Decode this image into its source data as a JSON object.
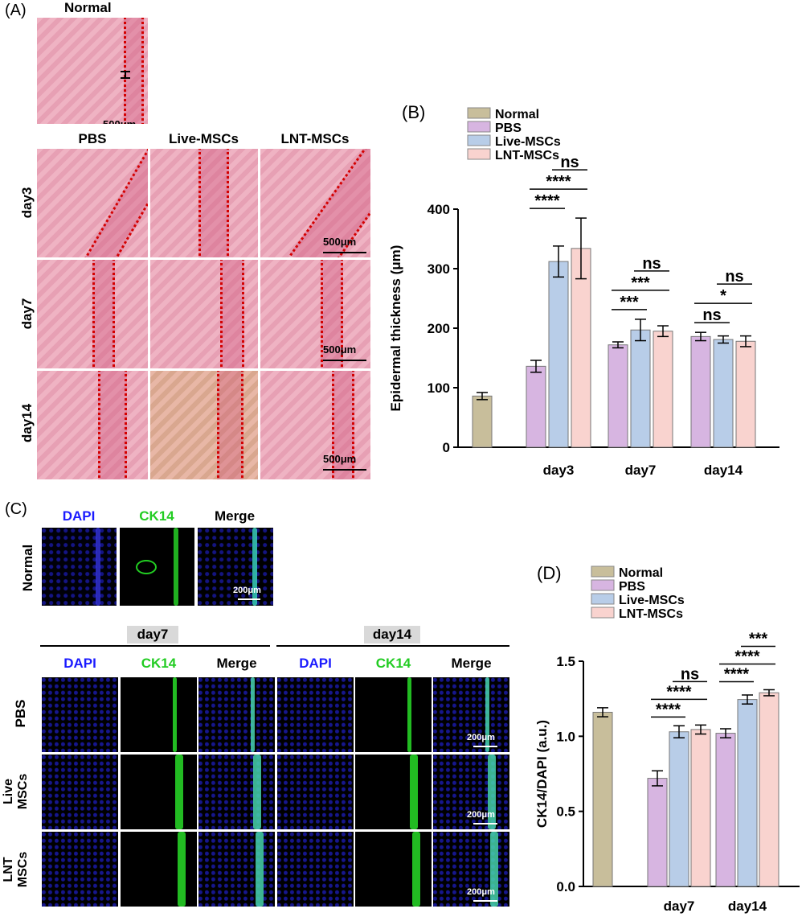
{
  "panels": {
    "A": "(A)",
    "B": "(B)",
    "C": "(C)",
    "D": "(D)"
  },
  "panelA": {
    "normal_title": "Normal",
    "scale": "500μm",
    "columns": [
      "PBS",
      "Live-MSCs",
      "LNT-MSCs"
    ],
    "rows": [
      "day3",
      "day7",
      "day14"
    ]
  },
  "panelC": {
    "channels": [
      "DAPI",
      "CK14",
      "Merge"
    ],
    "normal_row": "Normal",
    "scale": "200μm",
    "group_headers": [
      "day7",
      "day14"
    ],
    "rows": [
      {
        "line1": "PBS",
        "line2": ""
      },
      {
        "line1": "Live",
        "line2": "MSCs"
      },
      {
        "line1": "LNT",
        "line2": "MSCs"
      }
    ],
    "channel_colors": {
      "DAPI": "#1a1aff",
      "CK14": "#22cc22",
      "Merge": "#000000"
    }
  },
  "chart_data": [
    {
      "type": "bar",
      "ylabel": "Epidermal thickness (μm)",
      "ylim": [
        0,
        400
      ],
      "yticks": [
        0,
        100,
        200,
        300,
        400
      ],
      "legend": [
        "Normal",
        "PBS",
        "Live-MSCs",
        "LNT-MSCs"
      ],
      "colors": [
        "#c8be9b",
        "#d7b5e1",
        "#b8cde8",
        "#f9d3cf"
      ],
      "groups": [
        {
          "label": "",
          "bars": [
            {
              "series": "Normal",
              "value": 86,
              "err": 6
            }
          ]
        },
        {
          "label": "day3",
          "bars": [
            {
              "series": "PBS",
              "value": 136,
              "err": 10
            },
            {
              "series": "Live-MSCs",
              "value": 312,
              "err": 26
            },
            {
              "series": "LNT-MSCs",
              "value": 334,
              "err": 51
            }
          ]
        },
        {
          "label": "day7",
          "bars": [
            {
              "series": "PBS",
              "value": 172,
              "err": 5
            },
            {
              "series": "Live-MSCs",
              "value": 197,
              "err": 18
            },
            {
              "series": "LNT-MSCs",
              "value": 195,
              "err": 9
            }
          ]
        },
        {
          "label": "day14",
          "bars": [
            {
              "series": "PBS",
              "value": 186,
              "err": 7
            },
            {
              "series": "Live-MSCs",
              "value": 181,
              "err": 6
            },
            {
              "series": "LNT-MSCs",
              "value": 178,
              "err": 9
            }
          ]
        }
      ],
      "annotations": [
        {
          "group": 1,
          "from": 0,
          "to": 1,
          "text": "****",
          "level": 0
        },
        {
          "group": 1,
          "from": 0,
          "to": 2,
          "text": "****",
          "level": 1
        },
        {
          "group": 1,
          "from": 1,
          "to": 2,
          "text": "ns",
          "level": 2
        },
        {
          "group": 2,
          "from": 0,
          "to": 1,
          "text": "***",
          "level": 0
        },
        {
          "group": 2,
          "from": 0,
          "to": 2,
          "text": "***",
          "level": 1
        },
        {
          "group": 2,
          "from": 1,
          "to": 2,
          "text": "ns",
          "level": 2
        },
        {
          "group": 3,
          "from": 0,
          "to": 1,
          "text": "ns",
          "level": 0
        },
        {
          "group": 3,
          "from": 0,
          "to": 2,
          "text": "*",
          "level": 1
        },
        {
          "group": 3,
          "from": 1,
          "to": 2,
          "text": "ns",
          "level": 2
        }
      ]
    },
    {
      "type": "bar",
      "ylabel": "CK14/DAPI (a.u.)",
      "ylim": [
        0,
        1.5
      ],
      "yticks": [
        0.0,
        0.5,
        1.0,
        1.5
      ],
      "legend": [
        "Normal",
        "PBS",
        "Live-MSCs",
        "LNT-MSCs"
      ],
      "colors": [
        "#c8be9b",
        "#d7b5e1",
        "#b8cde8",
        "#f9d3cf"
      ],
      "groups": [
        {
          "label": "",
          "bars": [
            {
              "series": "Normal",
              "value": 1.16,
              "err": 0.03
            }
          ]
        },
        {
          "label": "day7",
          "bars": [
            {
              "series": "PBS",
              "value": 0.72,
              "err": 0.05
            },
            {
              "series": "Live-MSCs",
              "value": 1.03,
              "err": 0.04
            },
            {
              "series": "LNT-MSCs",
              "value": 1.045,
              "err": 0.03
            }
          ]
        },
        {
          "label": "day14",
          "bars": [
            {
              "series": "PBS",
              "value": 1.02,
              "err": 0.03
            },
            {
              "series": "Live-MSCs",
              "value": 1.245,
              "err": 0.03
            },
            {
              "series": "LNT-MSCs",
              "value": 1.29,
              "err": 0.02
            }
          ]
        }
      ],
      "annotations": [
        {
          "group": 1,
          "from": 0,
          "to": 1,
          "text": "****",
          "level": 0
        },
        {
          "group": 1,
          "from": 0,
          "to": 2,
          "text": "****",
          "level": 1
        },
        {
          "group": 1,
          "from": 1,
          "to": 2,
          "text": "ns",
          "level": 2
        },
        {
          "group": 2,
          "from": 0,
          "to": 1,
          "text": "****",
          "level": 0
        },
        {
          "group": 2,
          "from": 0,
          "to": 2,
          "text": "****",
          "level": 1
        },
        {
          "group": 2,
          "from": 1,
          "to": 2,
          "text": "***",
          "level": 2
        }
      ]
    }
  ]
}
